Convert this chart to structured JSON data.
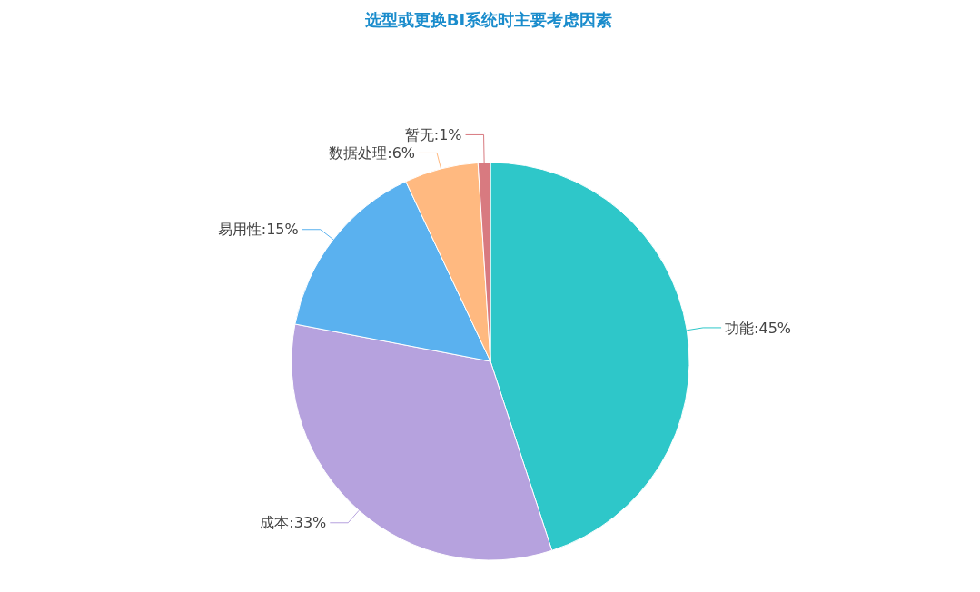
{
  "chart_data": {
    "type": "pie",
    "title": "选型或更换BI系统时主要考虑因素",
    "categories": [
      "功能",
      "成本",
      "易用性",
      "数据处理",
      "暂无"
    ],
    "values": [
      45,
      33,
      15,
      6,
      1
    ],
    "value_labels": [
      "45%",
      "33%",
      "15%",
      "6%",
      "1%"
    ],
    "colors": [
      "#2ec7c9",
      "#b6a2de",
      "#5ab1ef",
      "#ffb980",
      "#d87a80"
    ]
  }
}
